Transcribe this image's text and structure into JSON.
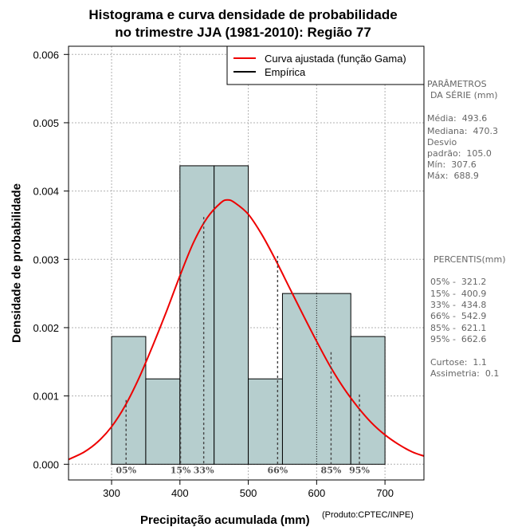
{
  "title": {
    "line1": "Histograma e curva densidade de probabilidade",
    "line2": "no trimestre JJA (1981-2010): Região 77"
  },
  "parameters": {
    "header1": "PARÂMETROS",
    "header2": "DA SÉRIE (mm)",
    "media": "Média:  493.6",
    "mediana": "Mediana:  470.3",
    "desvio1": "Desvio",
    "desvio2": "padrão:  105.0",
    "min": "Mín:  307.6",
    "max": "Máx:  688.9"
  },
  "percentis_panel": {
    "header": "PERCENTIS(mm)",
    "p05": "05% -  321.2",
    "p15": "15% -  400.9",
    "p33": "33% -  434.8",
    "p66": "66% -  542.9",
    "p85": "85% -  621.1",
    "p95": "95% -  662.6",
    "curtose": "Curtose:  1.1",
    "assimetria": "Assimetria:  0.1"
  },
  "credit": "(Produto:CPTEC/INPE)",
  "chart_data": {
    "type": "bar",
    "title": "Histograma e curva densidade de probabilidade no trimestre JJA (1981-2010): Região 77",
    "xlabel": "Precipitação acumulada (mm)",
    "ylabel": "Densidade de probabilidade",
    "xlim": [
      237,
      757
    ],
    "ylim": [
      -0.00023,
      0.00612
    ],
    "xticks": [
      "300",
      "400",
      "500",
      "600",
      "700"
    ],
    "xtick_values": [
      300,
      400,
      500,
      600,
      700
    ],
    "yticks": [
      "0.000",
      "0.001",
      "0.002",
      "0.003",
      "0.004",
      "0.005",
      "0.006"
    ],
    "ytick_values": [
      0,
      0.001,
      0.002,
      0.003,
      0.004,
      0.005,
      0.006
    ],
    "grid": true,
    "bins": [
      {
        "x0": 300,
        "x1": 350,
        "density": 0.00187
      },
      {
        "x0": 350,
        "x1": 400,
        "density": 0.00125
      },
      {
        "x0": 400,
        "x1": 450,
        "density": 0.00437
      },
      {
        "x0": 450,
        "x1": 500,
        "density": 0.00437
      },
      {
        "x0": 500,
        "x1": 550,
        "density": 0.00125
      },
      {
        "x0": 550,
        "x1": 650,
        "density": 0.0025
      },
      {
        "x0": 650,
        "x1": 700,
        "density": 0.00187
      }
    ],
    "curve": {
      "name": "Curva ajustada (função Gama)",
      "color": "#ee0000",
      "x": [
        237,
        260,
        280,
        300,
        320,
        340,
        360,
        380,
        400,
        420,
        440,
        460,
        470,
        480,
        500,
        520,
        540,
        560,
        580,
        600,
        620,
        640,
        660,
        680,
        700,
        720,
        740,
        757
      ],
      "y": [
        7e-05,
        0.00018,
        0.00033,
        0.00055,
        0.00086,
        0.00126,
        0.00173,
        0.00223,
        0.00276,
        0.00325,
        0.00361,
        0.00383,
        0.00387,
        0.00383,
        0.00366,
        0.00336,
        0.00299,
        0.00259,
        0.00219,
        0.0018,
        0.00143,
        0.00111,
        0.00084,
        0.00061,
        0.00043,
        0.00029,
        0.00018,
        0.00012
      ]
    },
    "empirical": {
      "name": "Empírica",
      "color": "#000000"
    },
    "legend_position": "top-right",
    "percentile_markers": [
      {
        "label": "05%",
        "x": 321.2,
        "density": 0.00094
      },
      {
        "label": "15%",
        "x": 400.9,
        "density": 0.00278
      },
      {
        "label": "33%",
        "x": 434.8,
        "density": 0.00362
      },
      {
        "label": "66%",
        "x": 542.9,
        "density": 0.00305
      },
      {
        "label": "85%",
        "x": 621.1,
        "density": 0.00164
      },
      {
        "label": "95%",
        "x": 662.6,
        "density": 0.00102
      }
    ],
    "colors": {
      "bar_fill": "#b6cece",
      "bar_stroke": "#000000",
      "grid": "#b0b0b0"
    }
  }
}
